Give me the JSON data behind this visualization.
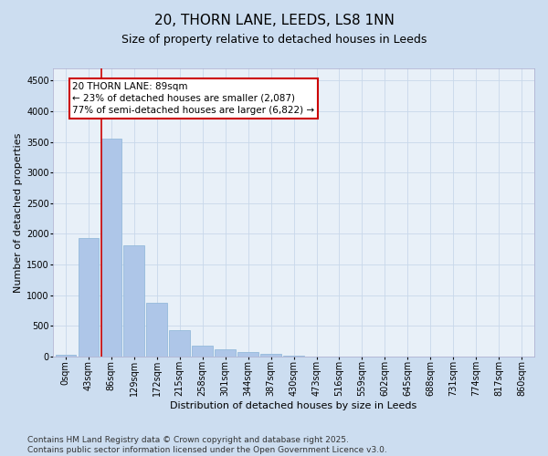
{
  "title_line1": "20, THORN LANE, LEEDS, LS8 1NN",
  "title_line2": "Size of property relative to detached houses in Leeds",
  "xlabel": "Distribution of detached houses by size in Leeds",
  "ylabel": "Number of detached properties",
  "categories": [
    "0sqm",
    "43sqm",
    "86sqm",
    "129sqm",
    "172sqm",
    "215sqm",
    "258sqm",
    "301sqm",
    "344sqm",
    "387sqm",
    "430sqm",
    "473sqm",
    "516sqm",
    "559sqm",
    "602sqm",
    "645sqm",
    "688sqm",
    "731sqm",
    "774sqm",
    "817sqm",
    "860sqm"
  ],
  "values": [
    30,
    1930,
    3560,
    1820,
    870,
    430,
    175,
    115,
    75,
    45,
    10,
    5,
    3,
    2,
    1,
    0,
    0,
    0,
    0,
    0,
    0
  ],
  "bar_color": "#aec6e8",
  "bar_edge_color": "#8ab4d8",
  "vline_x_index": 2,
  "vline_color": "#cc0000",
  "annotation_text": "20 THORN LANE: 89sqm\n← 23% of detached houses are smaller (2,087)\n77% of semi-detached houses are larger (6,822) →",
  "ylim": [
    0,
    4700
  ],
  "yticks": [
    0,
    500,
    1000,
    1500,
    2000,
    2500,
    3000,
    3500,
    4000,
    4500
  ],
  "grid_color": "#c8d8ea",
  "bg_color": "#ccddf0",
  "plot_bg_color": "#e8f0f8",
  "footer_line1": "Contains HM Land Registry data © Crown copyright and database right 2025.",
  "footer_line2": "Contains public sector information licensed under the Open Government Licence v3.0.",
  "title_fontsize": 11,
  "subtitle_fontsize": 9,
  "axis_label_fontsize": 8,
  "tick_fontsize": 7,
  "annotation_fontsize": 7.5,
  "footer_fontsize": 6.5
}
